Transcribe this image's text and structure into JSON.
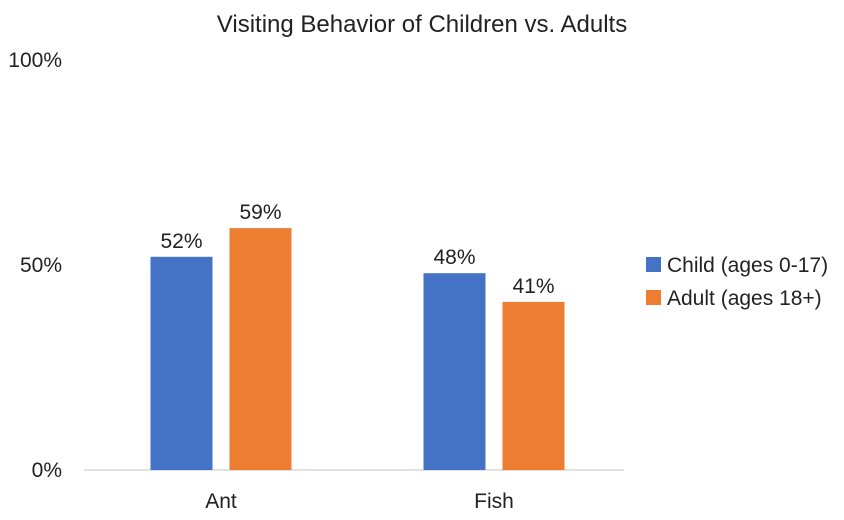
{
  "chart_data": {
    "type": "bar",
    "title": "Visiting Behavior of Children vs. Adults",
    "categories": [
      "Ant",
      "Fish"
    ],
    "series": [
      {
        "name": "Child (ages 0-17)",
        "values": [
          52,
          48
        ],
        "labels": [
          "52%",
          "48%"
        ],
        "color": "#4472C4"
      },
      {
        "name": "Adult (ages 18+)",
        "values": [
          59,
          41
        ],
        "labels": [
          "59%",
          "41%"
        ],
        "color": "#ED7D31"
      }
    ],
    "ylim": [
      0,
      100
    ],
    "yticks": [
      {
        "value": 0,
        "label": "0%"
      },
      {
        "value": 50,
        "label": "50%"
      },
      {
        "value": 100,
        "label": "100%"
      }
    ],
    "xlabel": "",
    "ylabel": "",
    "grid": false,
    "legend": "right"
  }
}
